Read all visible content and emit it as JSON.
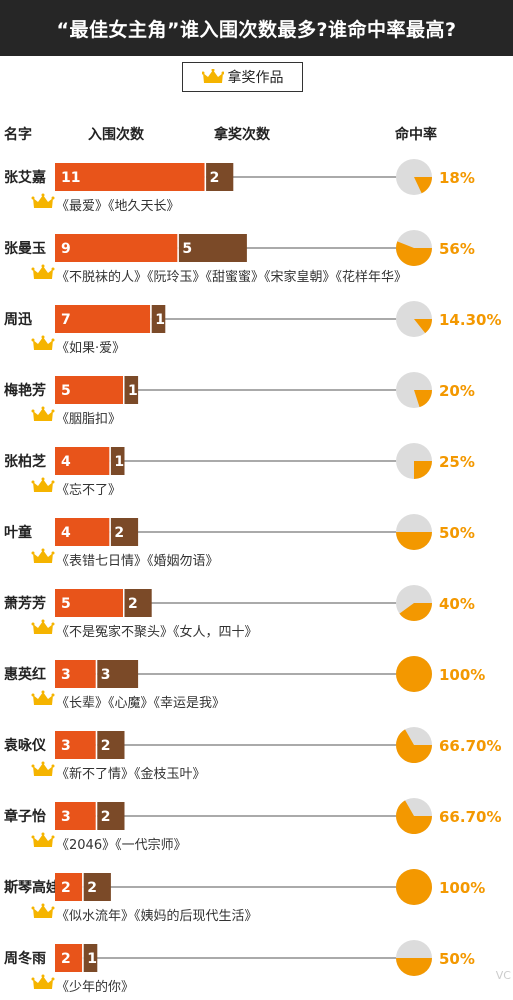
{
  "title": "“最佳女主角”谁入围次数最多?谁命中率最高?",
  "legend_label": "拿奖作品",
  "crown_icon": "crown-icon",
  "colors": {
    "nominated": "#e8541a",
    "won": "#7b4a28",
    "pie_fill": "#f39800",
    "pie_bg": "#dcdcdc",
    "rate_text": "#f39800"
  },
  "chart_data": {
    "type": "bar",
    "column_headers": [
      "名字",
      "入围次数",
      "拿奖次数",
      "命中率"
    ],
    "series": [
      {
        "name": "入围次数",
        "values": [
          11,
          9,
          7,
          5,
          4,
          4,
          5,
          3,
          3,
          3,
          2,
          2
        ]
      },
      {
        "name": "拿奖次数",
        "values": [
          2,
          5,
          1,
          1,
          1,
          2,
          2,
          3,
          2,
          2,
          2,
          1
        ]
      }
    ],
    "rows": [
      {
        "name": "张艾嘉",
        "nominated": 11,
        "won": 2,
        "rate": 18,
        "rate_label": "18%",
        "works": "《最爱》《地久天长》"
      },
      {
        "name": "张曼玉",
        "nominated": 9,
        "won": 5,
        "rate": 56,
        "rate_label": "56%",
        "works": "《不脱袜的人》《阮玲玉》《甜蜜蜜》《宋家皇朝》《花样年华》"
      },
      {
        "name": "周迅",
        "nominated": 7,
        "won": 1,
        "rate": 14.3,
        "rate_label": "14.30%",
        "works": "《如果·爱》"
      },
      {
        "name": "梅艳芳",
        "nominated": 5,
        "won": 1,
        "rate": 20,
        "rate_label": "20%",
        "works": "《胭脂扣》"
      },
      {
        "name": "张柏芝",
        "nominated": 4,
        "won": 1,
        "rate": 25,
        "rate_label": "25%",
        "works": "《忘不了》"
      },
      {
        "name": "叶童",
        "nominated": 4,
        "won": 2,
        "rate": 50,
        "rate_label": "50%",
        "works": "《表错七日情》《婚姻勿语》"
      },
      {
        "name": "萧芳芳",
        "nominated": 5,
        "won": 2,
        "rate": 40,
        "rate_label": "40%",
        "works": "《不是冤家不聚头》《女人，四十》"
      },
      {
        "name": "惠英红",
        "nominated": 3,
        "won": 3,
        "rate": 100,
        "rate_label": "100%",
        "works": "《长辈》《心魔》《幸运是我》"
      },
      {
        "name": "袁咏仪",
        "nominated": 3,
        "won": 2,
        "rate": 66.7,
        "rate_label": "66.70%",
        "works": "《新不了情》《金枝玉叶》"
      },
      {
        "name": "章子怡",
        "nominated": 3,
        "won": 2,
        "rate": 66.7,
        "rate_label": "66.70%",
        "works": "《2046》《一代宗师》"
      },
      {
        "name": "斯琴高娃",
        "nominated": 2,
        "won": 2,
        "rate": 100,
        "rate_label": "100%",
        "works": "《似水流年》《姨妈的后现代生活》"
      },
      {
        "name": "周冬雨",
        "nominated": 2,
        "won": 1,
        "rate": 50,
        "rate_label": "50%",
        "works": "《少年的你》"
      }
    ]
  },
  "watermark": "VC"
}
